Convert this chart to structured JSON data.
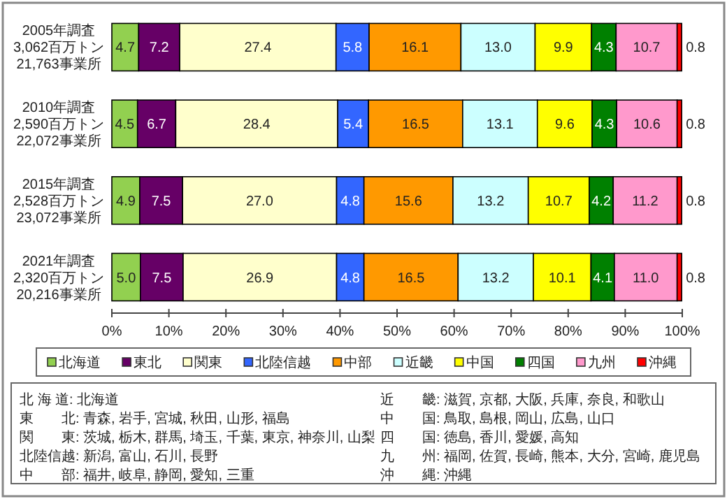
{
  "chart_data": {
    "type": "bar",
    "orientation": "horizontal",
    "stacked": true,
    "legend": "bottom",
    "categories": [
      "2005年調査\n3,062百万トン\n21,763事業所",
      "2010年調査\n2,590百万トン\n22,072事業所",
      "2015年調査\n2,528百万トン\n23,072事業所",
      "2021年調査\n2,320百万トン\n20,216事業所"
    ],
    "xlim": [
      0,
      100
    ],
    "xticks": [
      {
        "value": 0,
        "label": "0%"
      },
      {
        "value": 10,
        "label": "10%"
      },
      {
        "value": 20,
        "label": "20%"
      },
      {
        "value": 30,
        "label": "30%"
      },
      {
        "value": 40,
        "label": "40%"
      },
      {
        "value": 50,
        "label": "50%"
      },
      {
        "value": 60,
        "label": "60%"
      },
      {
        "value": 70,
        "label": "70%"
      },
      {
        "value": 80,
        "label": "80%"
      },
      {
        "value": 90,
        "label": "90%"
      },
      {
        "value": 100,
        "label": "100%"
      }
    ],
    "series": [
      {
        "name": "北海道",
        "color": "#92d050",
        "values": [
          4.7,
          4.5,
          4.9,
          5.0
        ],
        "value_labels": [
          "4.7",
          "4.5",
          "4.9",
          "5.0"
        ]
      },
      {
        "name": "東北",
        "color": "#660066",
        "values": [
          7.2,
          6.7,
          7.5,
          7.5
        ],
        "value_labels": [
          "7.2",
          "6.7",
          "7.5",
          "7.5"
        ]
      },
      {
        "name": "関東",
        "color": "#ffffcc",
        "values": [
          27.4,
          28.4,
          27.0,
          26.9
        ],
        "value_labels": [
          "27.4",
          "28.4",
          "27.0",
          "26.9"
        ]
      },
      {
        "name": "北陸信越",
        "color": "#3366ff",
        "values": [
          5.8,
          5.4,
          4.8,
          4.8
        ],
        "value_labels": [
          "5.8",
          "5.4",
          "4.8",
          "4.8"
        ]
      },
      {
        "name": "中部",
        "color": "#ff9900",
        "values": [
          16.1,
          16.5,
          15.6,
          16.5
        ],
        "value_labels": [
          "16.1",
          "16.5",
          "15.6",
          "16.5"
        ]
      },
      {
        "name": "近畿",
        "color": "#ccffff",
        "values": [
          13.0,
          13.1,
          13.2,
          13.2
        ],
        "value_labels": [
          "13.0",
          "13.1",
          "13.2",
          "13.2"
        ]
      },
      {
        "name": "中国",
        "color": "#ffff00",
        "values": [
          9.9,
          9.6,
          10.7,
          10.1
        ],
        "value_labels": [
          "9.9",
          "9.6",
          "10.7",
          "10.1"
        ]
      },
      {
        "name": "四国",
        "color": "#008000",
        "values": [
          4.3,
          4.3,
          4.2,
          4.1
        ],
        "value_labels": [
          "4.3",
          "4.3",
          "4.2",
          "4.1"
        ]
      },
      {
        "name": "九州",
        "color": "#ff99cc",
        "values": [
          10.7,
          10.6,
          11.2,
          11.0
        ],
        "value_labels": [
          "10.7",
          "10.6",
          "11.2",
          "11.0"
        ]
      },
      {
        "name": "沖縄",
        "color": "#ff0000",
        "values": [
          0.8,
          0.8,
          0.8,
          0.8
        ],
        "value_labels": [
          "0.8",
          "0.8",
          "0.8",
          "0.8"
        ]
      }
    ],
    "annotations": [
      "北 海 道: 北海道",
      "東　　北: 青森, 岩手, 宮城, 秋田, 山形, 福島",
      "関　　東: 茨城, 栃木, 群馬, 埼玉, 千葉, 東京, 神奈川, 山梨",
      "北陸信越: 新潟, 富山, 石川, 長野",
      "中　　部: 福井, 岐阜, 静岡, 愛知, 三重",
      "近　　畿: 滋賀, 京都, 大阪, 兵庫, 奈良, 和歌山",
      "中　　国: 鳥取, 島根, 岡山, 広島, 山口",
      "四　　国: 徳島, 香川, 愛媛, 高知",
      "九　　州: 福岡, 佐賀, 長崎, 熊本, 大分, 宮崎, 鹿児島",
      "沖　　縄: 沖縄"
    ]
  }
}
